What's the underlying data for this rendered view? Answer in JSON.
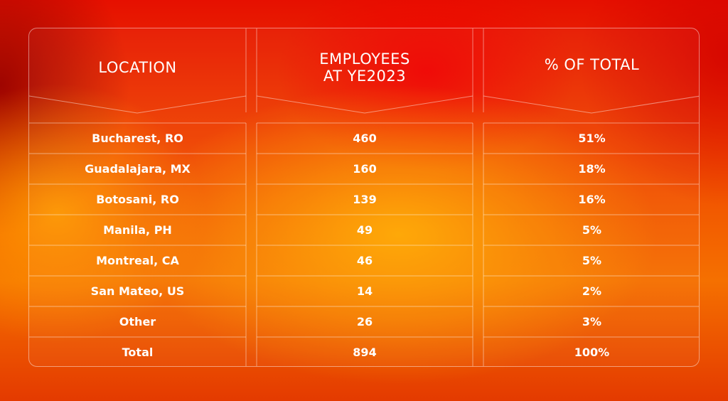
{
  "table": {
    "headers": {
      "location": "LOCATION",
      "employees_line1": "EMPLOYEES",
      "employees_line2": "AT YE2023",
      "percent": "% OF TOTAL"
    },
    "rows": [
      {
        "location": "Bucharest, RO",
        "employees": "460",
        "percent": "51%"
      },
      {
        "location": "Guadalajara, MX",
        "employees": "160",
        "percent": "18%"
      },
      {
        "location": "Botosani, RO",
        "employees": "139",
        "percent": "16%"
      },
      {
        "location": "Manila, PH",
        "employees": "49",
        "percent": "5%"
      },
      {
        "location": "Montreal, CA",
        "employees": "46",
        "percent": "5%"
      },
      {
        "location": "San Mateo, US",
        "employees": "14",
        "percent": "2%"
      },
      {
        "location": "Other",
        "employees": "26",
        "percent": "3%"
      },
      {
        "location": "Total",
        "employees": "894",
        "percent": "100%"
      }
    ]
  },
  "colors": {
    "text": "#ffffff",
    "border": "rgba(255,255,255,0.45)",
    "background_red": "#e61000",
    "background_orange": "#f5a000"
  }
}
